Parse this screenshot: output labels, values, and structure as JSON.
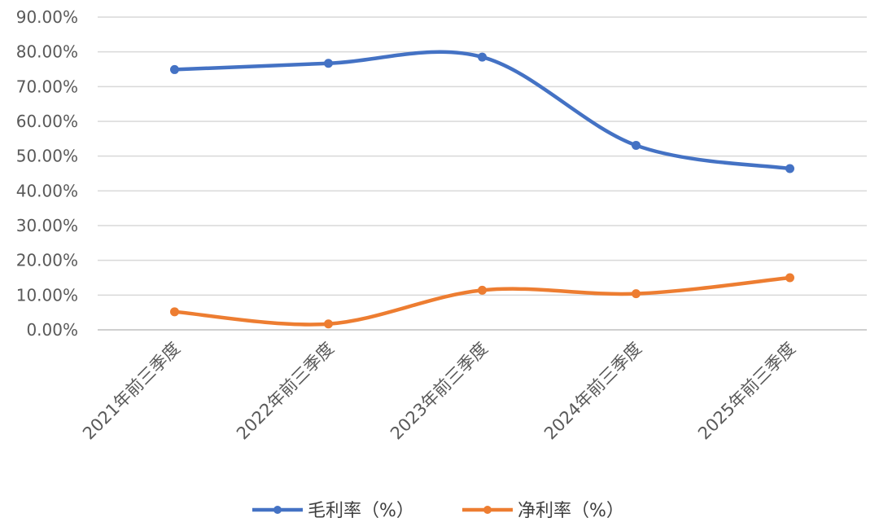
{
  "chart_data": {
    "type": "line",
    "title": "",
    "xlabel": "",
    "ylabel": "",
    "categories": [
      "2021年前三季度",
      "2022年前三季度",
      "2023年前三季度",
      "2024年前三季度",
      "2025年前三季度"
    ],
    "series": [
      {
        "name": "毛利率（%）",
        "values": [
          0.749,
          0.767,
          0.785,
          0.531,
          0.464
        ],
        "color": "#4472C4"
      },
      {
        "name": "净利率（%）",
        "values": [
          0.052,
          0.017,
          0.114,
          0.104,
          0.15
        ],
        "color": "#ED7D31"
      }
    ],
    "ylim": [
      0,
      0.9
    ],
    "yticks": [
      "0.00%",
      "10.00%",
      "20.00%",
      "30.00%",
      "40.00%",
      "50.00%",
      "60.00%",
      "70.00%",
      "80.00%",
      "90.00%"
    ],
    "smooth": true,
    "grid": "horizontal",
    "legend": "bottom"
  }
}
